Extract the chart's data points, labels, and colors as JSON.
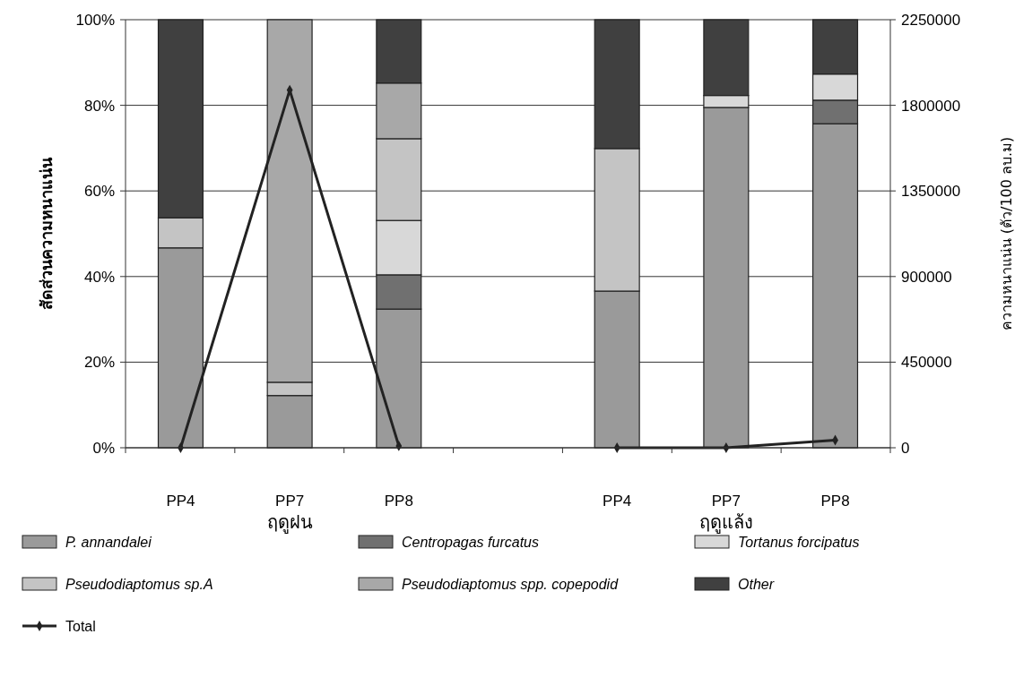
{
  "chart_data": {
    "type": "bar",
    "stacked": true,
    "ylabel": "สัดส่วนความหนาแน่น",
    "y2label": "ความหนาแน่น (ตัว/100 ลบ.ม)",
    "categories": [
      "PP4",
      "PP7",
      "PP8",
      null,
      "PP4",
      "PP7",
      "PP8"
    ],
    "series": [
      {
        "name": "P. annandalei",
        "color": "#9a9a9a",
        "values": [
          46.7,
          12.2,
          32.4,
          null,
          36.6,
          79.5,
          75.7
        ]
      },
      {
        "name": "Centropagas  furcatus",
        "color": "#707070",
        "values": [
          0,
          0,
          8,
          null,
          0,
          0,
          5.5
        ]
      },
      {
        "name": "Tortanus  forcipatus",
        "color": "#d8d8d8",
        "values": [
          0,
          0,
          12.7,
          null,
          0,
          2.8,
          6.1
        ]
      },
      {
        "name": "Pseudodiaptomus sp.A",
        "color": "#c4c4c4",
        "values": [
          7,
          3.1,
          19.1,
          null,
          33.3,
          0,
          0
        ]
      },
      {
        "name": "Pseudodiaptomus spp. copepodid",
        "color": "#a8a8a8",
        "values": [
          0,
          84.7,
          13,
          null,
          0,
          0,
          0
        ]
      },
      {
        "name": "Other",
        "color": "#404040",
        "values": [
          46.3,
          0,
          14.8,
          null,
          30.1,
          17.7,
          12.7
        ]
      },
      {
        "name": "Total",
        "type": "line",
        "axis": "y2",
        "color": "#222222",
        "marker": "diamond",
        "values": [
          0,
          1880000,
          10000,
          null,
          0,
          0,
          40000
        ]
      }
    ],
    "ylim": [
      0,
      100
    ],
    "yticks": [
      {
        "value": 0,
        "label": "0%"
      },
      {
        "value": 20,
        "label": "20%"
      },
      {
        "value": 40,
        "label": "40%"
      },
      {
        "value": 60,
        "label": "60%"
      },
      {
        "value": 80,
        "label": "80%"
      },
      {
        "value": 100,
        "label": "100%"
      }
    ],
    "y2lim": [
      0,
      2250000
    ],
    "y2ticks": [
      0,
      450000,
      900000,
      1350000,
      1800000,
      2250000
    ],
    "grid": "y",
    "legend": "bottom",
    "annotations": [
      "ฤดูฝน",
      "ฤดูแล้ง"
    ]
  }
}
